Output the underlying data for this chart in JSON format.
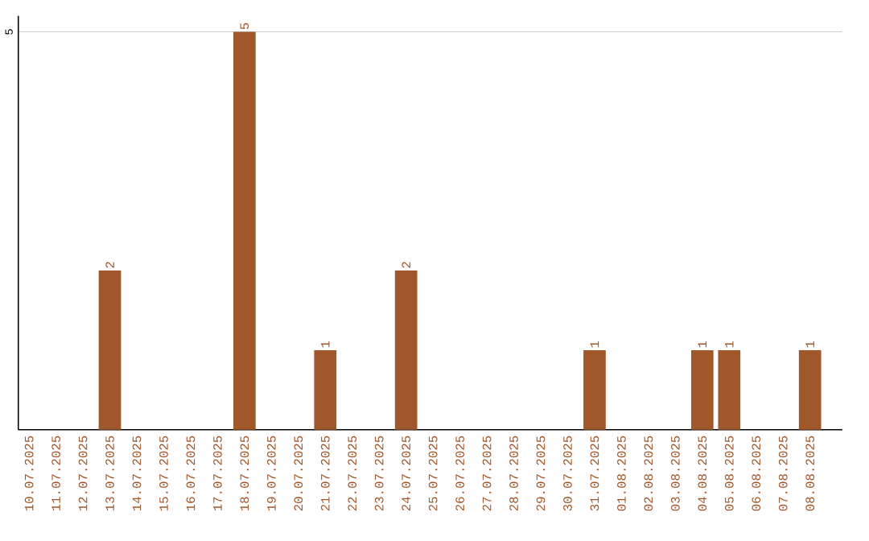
{
  "chart_data": {
    "type": "bar",
    "categories": [
      "10.07.2025",
      "11.07.2025",
      "12.07.2025",
      "13.07.2025",
      "14.07.2025",
      "15.07.2025",
      "16.07.2025",
      "17.07.2025",
      "18.07.2025",
      "19.07.2025",
      "20.07.2025",
      "21.07.2025",
      "22.07.2025",
      "23.07.2025",
      "24.07.2025",
      "25.07.2025",
      "26.07.2025",
      "27.07.2025",
      "28.07.2025",
      "29.07.2025",
      "30.07.2025",
      "31.07.2025",
      "01.08.2025",
      "02.08.2025",
      "03.08.2025",
      "04.08.2025",
      "05.08.2025",
      "06.08.2025",
      "07.08.2025",
      "08.08.2025"
    ],
    "values": [
      0,
      0,
      0,
      2,
      0,
      0,
      0,
      0,
      5,
      0,
      0,
      1,
      0,
      0,
      2,
      0,
      0,
      0,
      0,
      0,
      0,
      1,
      0,
      0,
      0,
      1,
      1,
      0,
      0,
      1
    ],
    "value_labels": [
      null,
      null,
      null,
      "2",
      null,
      null,
      null,
      null,
      "5",
      null,
      null,
      "1",
      null,
      null,
      "2",
      null,
      null,
      null,
      null,
      null,
      null,
      "1",
      null,
      null,
      null,
      "1",
      "1",
      null,
      null,
      "1"
    ],
    "color": "#a0572a",
    "ylim": [
      0,
      5.2
    ],
    "yticks": [
      5
    ],
    "grid": "y"
  }
}
